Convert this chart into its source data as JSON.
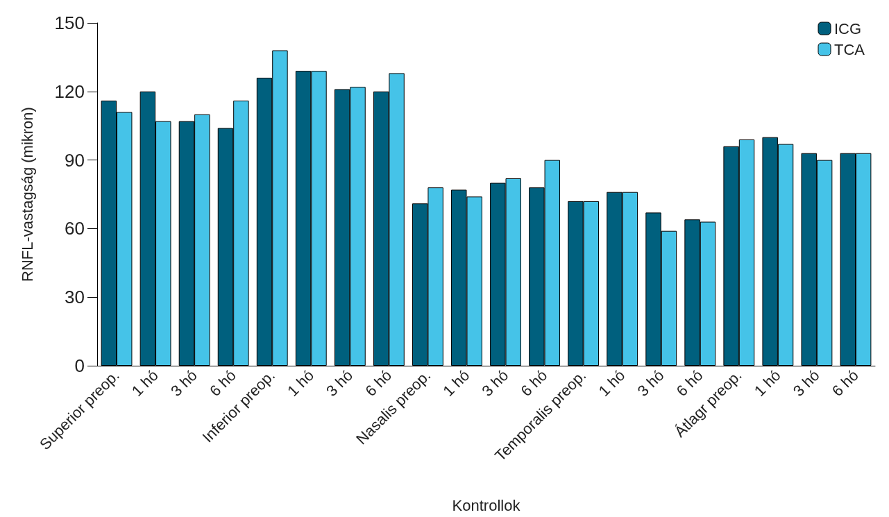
{
  "chart_data": {
    "type": "bar",
    "xlabel": "Kontrollok",
    "ylabel": "RNFL-vastagság (mikron)",
    "categories": [
      "Superior preop.",
      "1 hó",
      "3 hó",
      "6 hó",
      "Inferior preop.",
      "1 hó",
      "3 hó",
      "6 hó",
      "Nasalis preop.",
      "1 hó",
      "3 hó",
      "6 hó",
      "Temporalis preop.",
      "1 hó",
      "3 hó",
      "6 hó",
      "Átlagr preop.",
      "1 hó",
      "3 hó",
      "6 hó"
    ],
    "series": [
      {
        "name": "ICG",
        "color": "#00607e",
        "values": [
          116,
          120,
          107,
          104,
          126,
          129,
          121,
          120,
          71,
          77,
          80,
          78,
          72,
          76,
          67,
          64,
          96,
          100,
          93,
          93
        ]
      },
      {
        "name": "TCA",
        "color": "#45c3e8",
        "values": [
          111,
          107,
          110,
          116,
          138,
          129,
          122,
          128,
          78,
          74,
          82,
          90,
          72,
          76,
          59,
          63,
          99,
          97,
          90,
          93
        ]
      }
    ],
    "ylim": [
      0,
      150
    ],
    "yticks": [
      0,
      30,
      60,
      90,
      120,
      150
    ],
    "grid": false,
    "legend": "top right"
  }
}
